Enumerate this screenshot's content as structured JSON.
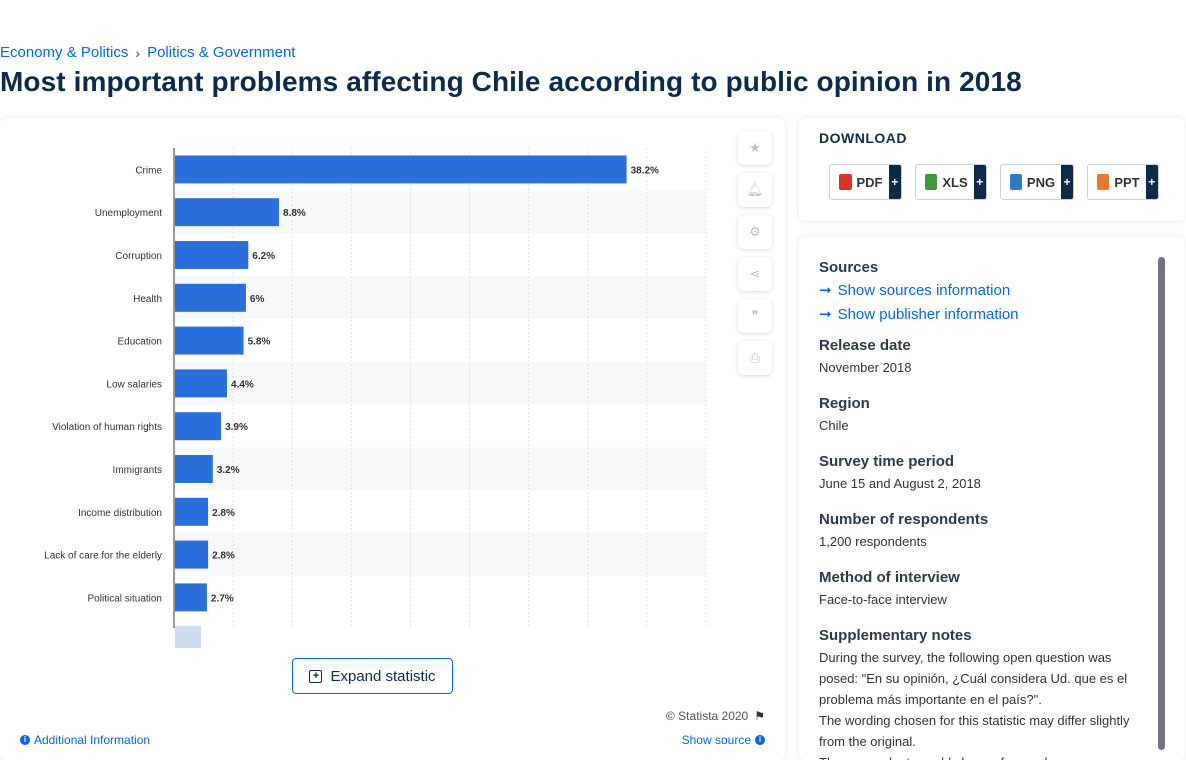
{
  "breadcrumb": {
    "items": [
      "Economy & Politics",
      "Politics & Government"
    ],
    "separator": "›"
  },
  "page_title": "Most important problems affecting Chile according to public opinion in 2018",
  "chart_data": {
    "type": "bar",
    "orientation": "horizontal",
    "categories": [
      "Crime",
      "Unemployment",
      "Corruption",
      "Health",
      "Education",
      "Low salaries",
      "Violation of human rights",
      "Immigrants",
      "Income distribution",
      "Lack of care for the elderly",
      "Political situation"
    ],
    "values": [
      38.2,
      8.8,
      6.2,
      6,
      5.8,
      4.4,
      3.9,
      3.2,
      2.8,
      2.8,
      2.7
    ],
    "value_labels": [
      "38.2%",
      "8.8%",
      "6.2%",
      "6%",
      "5.8%",
      "4.4%",
      "3.9%",
      "3.2%",
      "2.8%",
      "2.8%",
      "2.7%"
    ],
    "xlim": [
      0,
      45
    ],
    "grid": true,
    "bar_color": "#2b6fdc",
    "title": "",
    "xlabel": "",
    "ylabel": ""
  },
  "tools": [
    {
      "name": "favorite-star-icon",
      "glyph": "★"
    },
    {
      "name": "notification-bell-icon",
      "glyph": "🔔︎"
    },
    {
      "name": "settings-gear-icon",
      "glyph": "⚙︎"
    },
    {
      "name": "share-icon",
      "glyph": "⋖"
    },
    {
      "name": "quote-icon",
      "glyph": "❞"
    },
    {
      "name": "print-icon",
      "glyph": "⎙"
    }
  ],
  "expand_label": "Expand statistic",
  "copyright": "© Statista 2020",
  "additional_info": "Additional Information",
  "show_source": "Show source",
  "download": {
    "title": "DOWNLOAD",
    "buttons": [
      {
        "label": "PDF",
        "color": "#d9332b",
        "width": 73
      },
      {
        "label": "XLS",
        "color": "#3c9a3c",
        "width": 72
      },
      {
        "label": "PNG",
        "color": "#2e7bc4",
        "width": 74
      },
      {
        "label": "PPT",
        "color": "#e87a2a",
        "width": 72
      }
    ]
  },
  "details": {
    "sources_head": "Sources",
    "sources_link": "Show sources information",
    "publisher_link": "Show publisher information",
    "release_head": "Release date",
    "release_val": "November 2018",
    "region_head": "Region",
    "region_val": "Chile",
    "period_head": "Survey time period",
    "period_val": "June 15 and August 2, 2018",
    "respondents_head": "Number of respondents",
    "respondents_val": "1,200 respondents",
    "method_head": "Method of interview",
    "method_val": "Face-to-face interview",
    "notes_head": "Supplementary notes",
    "notes_val": "During the survey, the following open question was posed: \"En su opinión, ¿Cuál considera Ud. que es el problema más importante en el país?\".",
    "notes_val2": "The wording chosen for this statistic may differ slightly from the original.",
    "notes_val3": "The respondents could choose from only one"
  }
}
